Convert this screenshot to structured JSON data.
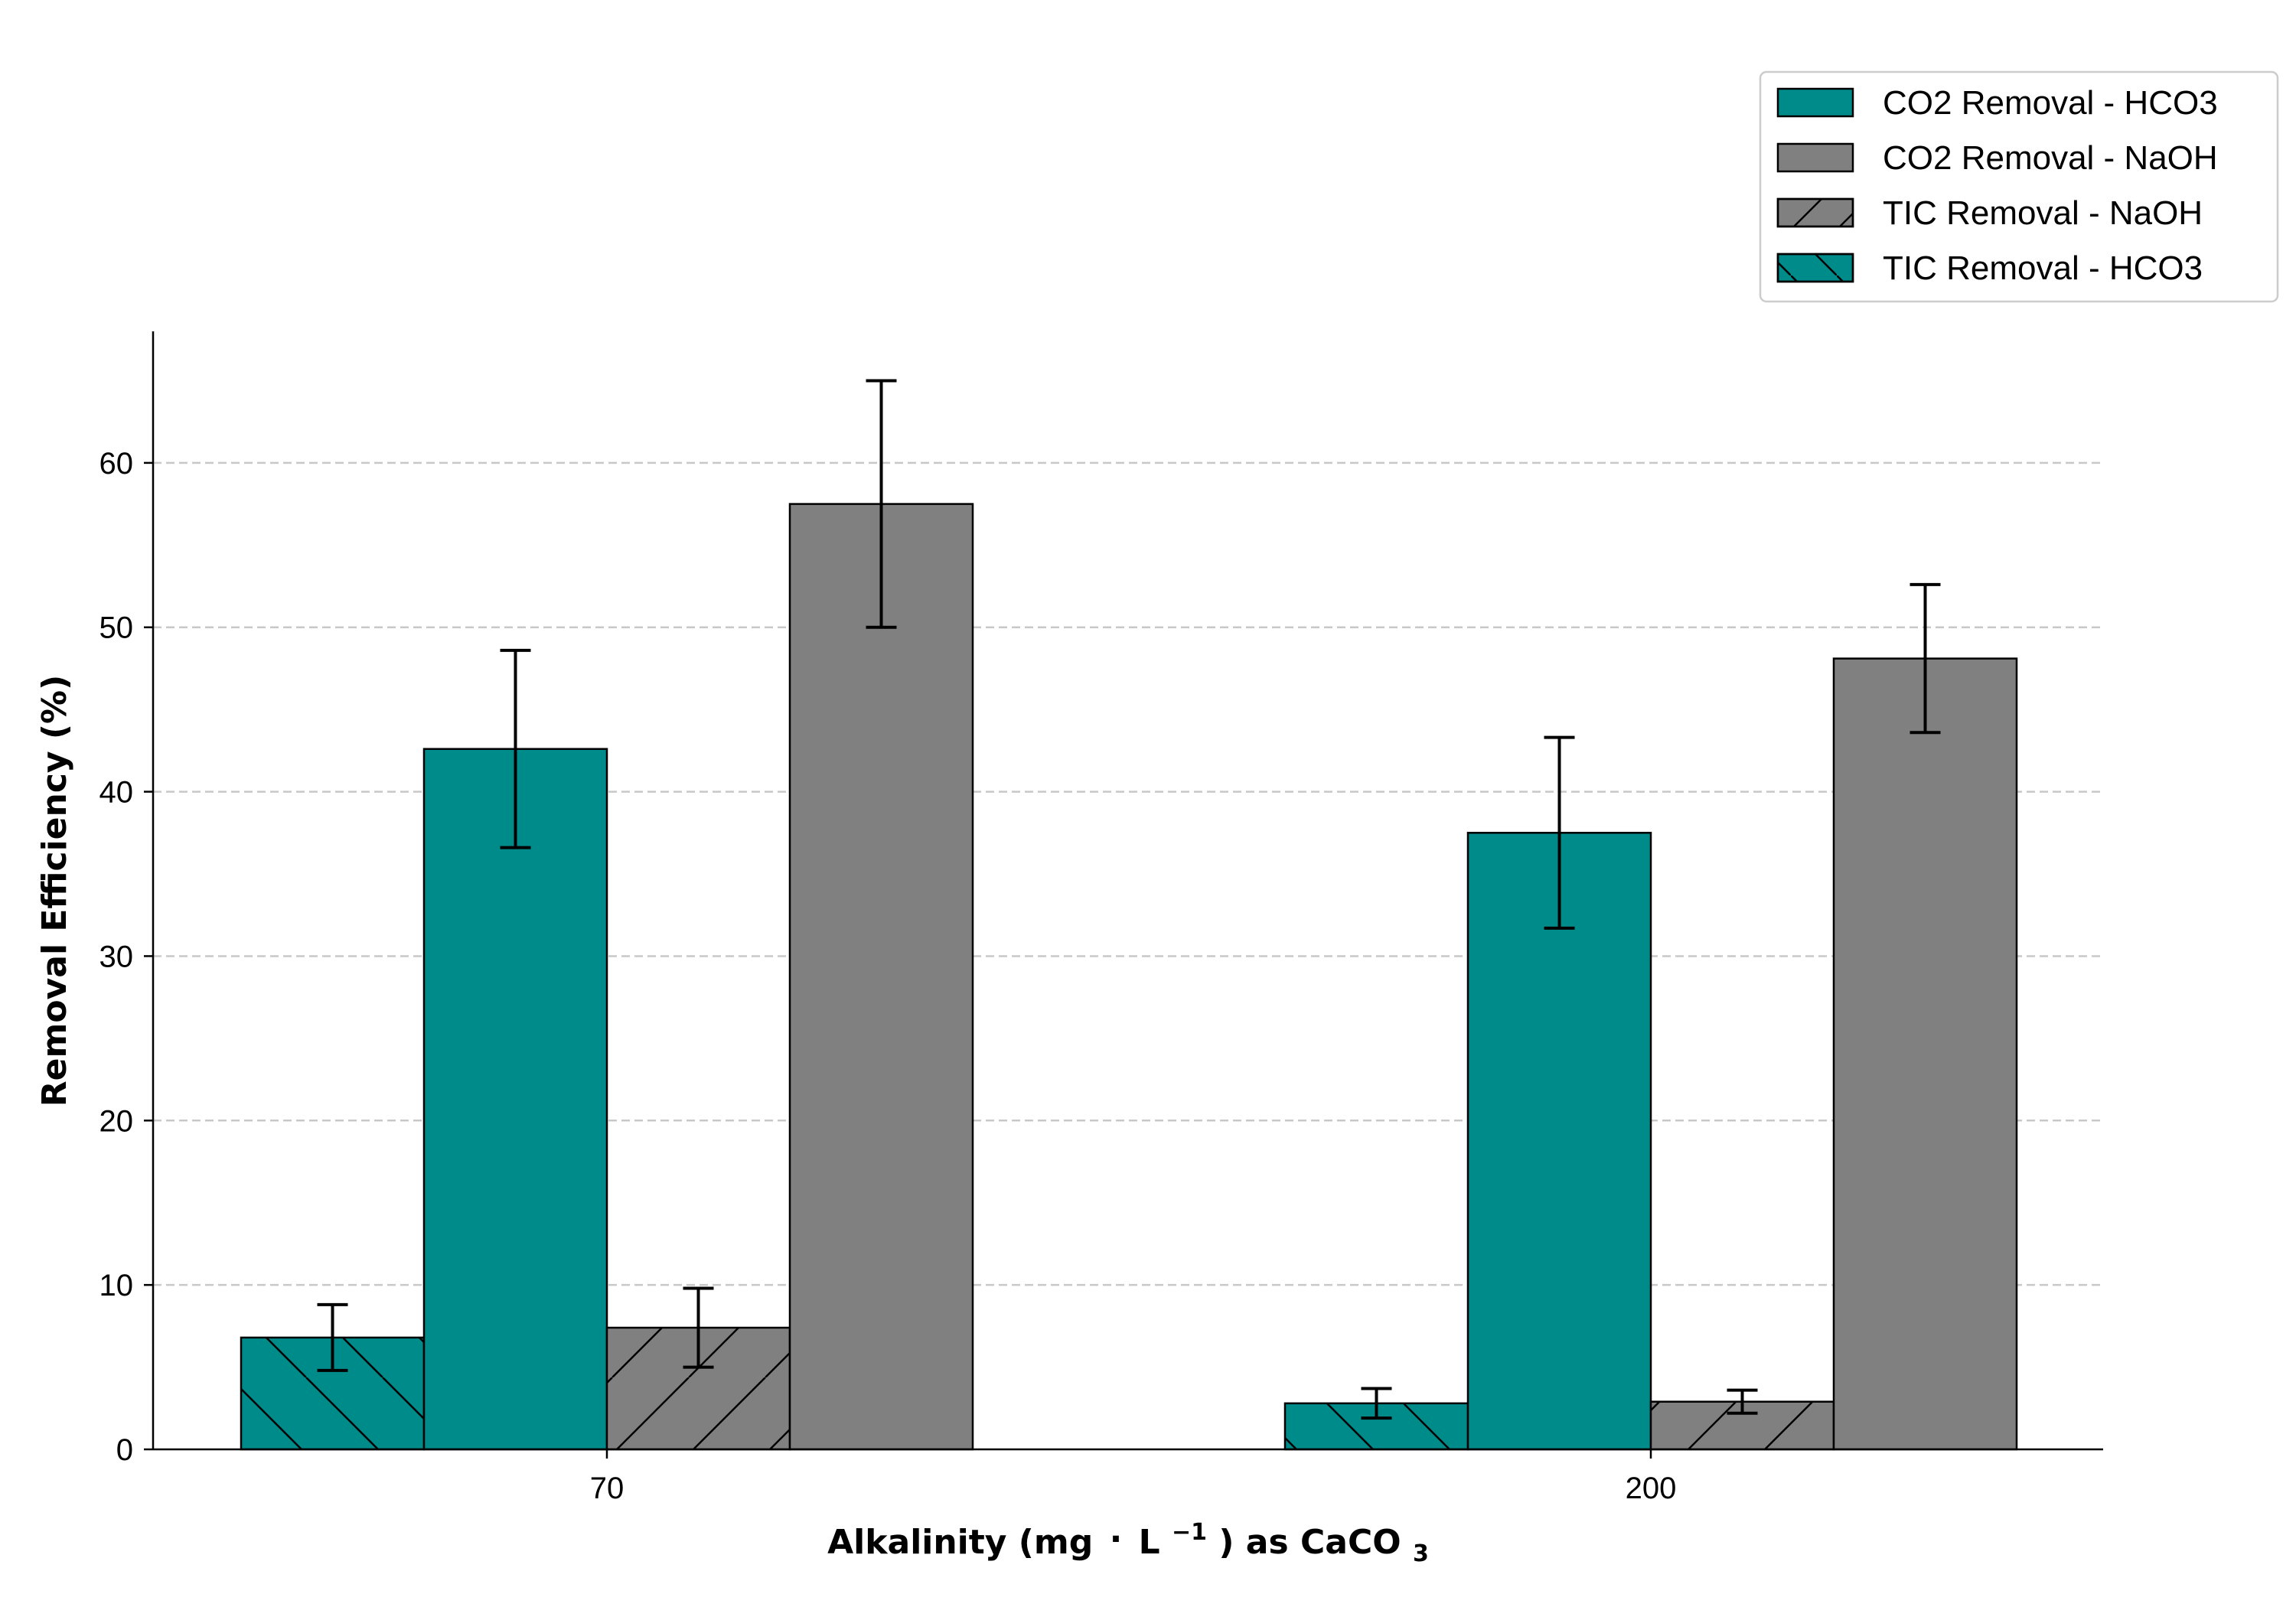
{
  "chart_data": {
    "type": "bar",
    "categories": [
      "70",
      "200"
    ],
    "series": [
      {
        "name": "TIC Removal - HCO3",
        "values": [
          6.8,
          2.8
        ],
        "errors": [
          2.0,
          0.9
        ],
        "color": "#008b8b",
        "hatch": "backslash"
      },
      {
        "name": "CO2 Removal - HCO3",
        "values": [
          42.6,
          37.5
        ],
        "errors": [
          6.0,
          5.8
        ],
        "color": "#008b8b",
        "hatch": "none"
      },
      {
        "name": "TIC Removal - NaOH",
        "values": [
          7.4,
          2.9
        ],
        "errors": [
          2.4,
          0.7
        ],
        "color": "#808080",
        "hatch": "slash"
      },
      {
        "name": "CO2 Removal - NaOH",
        "values": [
          57.5,
          48.1
        ],
        "errors": [
          7.5,
          4.5
        ],
        "color": "#808080",
        "hatch": "none"
      }
    ],
    "legend_order": [
      1,
      3,
      2,
      0
    ],
    "legend_position": "top-right",
    "xlabel": {
      "main": "Alkalinity (mg",
      "dot": "·",
      "unit": "L",
      "unit_sup": "−1",
      "suffix": ") as CaCO",
      "suffix_sub": "3"
    },
    "ylabel": "Removal Efficiency (%)",
    "yticks": [
      0,
      10,
      20,
      30,
      40,
      50,
      60
    ],
    "ylim": [
      0,
      68
    ],
    "grid": "y-dashed"
  }
}
